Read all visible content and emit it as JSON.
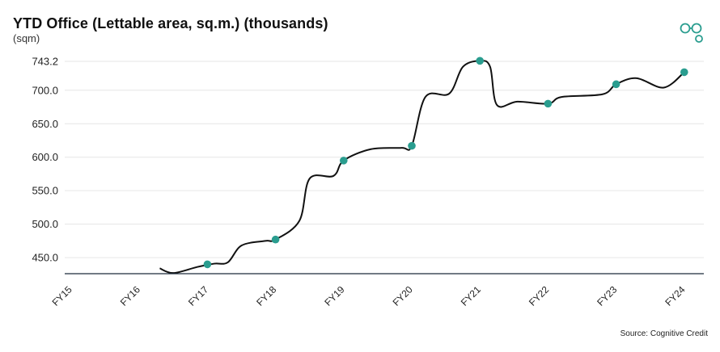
{
  "header": {
    "title": "YTD Office (Lettable area, sq.m.) (thousands)",
    "subtitle": "(sqm)",
    "source": "Source: Cognitive Credit"
  },
  "colors": {
    "line": "#111111",
    "marker": "#2a9d8f",
    "grid": "#e6e6e6",
    "axis": "#1c2a3a",
    "logo": "#2a9d8f"
  },
  "logo_icon": "linked-circles-icon",
  "chart_data": {
    "type": "line",
    "title": "YTD Office (Lettable area, sq.m.) (thousands)",
    "ylabel": "(sqm)",
    "categories": [
      "FY15",
      "FY16",
      "FY17",
      "FY18",
      "FY19",
      "FY20",
      "FY21",
      "FY22",
      "FY23",
      "FY24"
    ],
    "y_ticks": [
      "450.0",
      "500.0",
      "550.0",
      "600.0",
      "650.0",
      "700.0",
      "743.2"
    ],
    "ylim": [
      426,
      748
    ],
    "grid": true,
    "legend": "none",
    "series": [
      {
        "values": [
          {
            "x": 1.3,
            "y": 434
          },
          {
            "x": 1.5,
            "y": 427
          },
          {
            "x": 1.85,
            "y": 436
          },
          {
            "x": 2.1,
            "y": 441
          },
          {
            "x": 2.3,
            "y": 443
          },
          {
            "x": 2.5,
            "y": 468
          },
          {
            "x": 2.85,
            "y": 475
          },
          {
            "x": 3.0,
            "y": 477
          },
          {
            "x": 3.35,
            "y": 505
          },
          {
            "x": 3.5,
            "y": 568
          },
          {
            "x": 3.85,
            "y": 572
          },
          {
            "x": 4.0,
            "y": 595
          },
          {
            "x": 4.4,
            "y": 612
          },
          {
            "x": 4.85,
            "y": 614
          },
          {
            "x": 5.0,
            "y": 617
          },
          {
            "x": 5.2,
            "y": 690
          },
          {
            "x": 5.55,
            "y": 695
          },
          {
            "x": 5.75,
            "y": 735
          },
          {
            "x": 6.0,
            "y": 744
          },
          {
            "x": 6.15,
            "y": 735
          },
          {
            "x": 6.25,
            "y": 678
          },
          {
            "x": 6.55,
            "y": 683
          },
          {
            "x": 7.0,
            "y": 680
          },
          {
            "x": 7.2,
            "y": 690
          },
          {
            "x": 7.8,
            "y": 694
          },
          {
            "x": 8.0,
            "y": 709
          },
          {
            "x": 8.3,
            "y": 718
          },
          {
            "x": 8.7,
            "y": 704
          },
          {
            "x": 9.0,
            "y": 727
          }
        ],
        "markers": [
          {
            "x": 2.0,
            "y": 440
          },
          {
            "x": 3.0,
            "y": 477
          },
          {
            "x": 4.0,
            "y": 595
          },
          {
            "x": 5.0,
            "y": 617
          },
          {
            "x": 6.0,
            "y": 744
          },
          {
            "x": 7.0,
            "y": 680
          },
          {
            "x": 8.0,
            "y": 709
          },
          {
            "x": 9.0,
            "y": 727
          }
        ]
      }
    ]
  }
}
